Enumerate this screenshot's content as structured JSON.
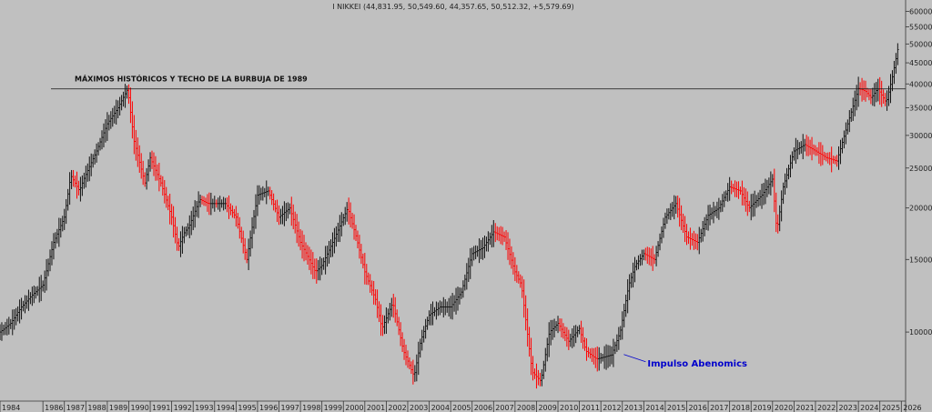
{
  "chart_data": {
    "type": "line",
    "title": "I NIKKEI (44,831.95, 50,549.60, 44,357.65, 50,512.32, +5,579.69)",
    "scale": "log",
    "ylim": [
      6800,
      62000
    ],
    "xlim": [
      1984.0,
      2026.2
    ],
    "x_ticks": [
      1984,
      1986,
      1987,
      1988,
      1989,
      1990,
      1991,
      1992,
      1993,
      1994,
      1995,
      1996,
      1997,
      1998,
      1999,
      2000,
      2001,
      2002,
      2003,
      2004,
      2005,
      2006,
      2007,
      2008,
      2009,
      2010,
      2011,
      2012,
      2013,
      2014,
      2015,
      2016,
      2017,
      2018,
      2019,
      2020,
      2021,
      2022,
      2023,
      2024,
      2025,
      2026
    ],
    "y_ticks": [
      {
        "value": 60000,
        "label": "60000"
      },
      {
        "value": 55000,
        "label": "55000"
      },
      {
        "value": 50000,
        "label": "50000"
      },
      {
        "value": 45000,
        "label": "45000"
      },
      {
        "value": 40000,
        "label": "40000"
      },
      {
        "value": 35000,
        "label": "35000"
      },
      {
        "value": 30000,
        "label": "30000"
      },
      {
        "value": 25000,
        "label": "25000"
      },
      {
        "value": 20000,
        "label": "20000"
      },
      {
        "value": 15000,
        "label": "15000"
      },
      {
        "value": 10000,
        "label": "10000"
      }
    ],
    "series": [
      {
        "up_color": "#111111",
        "down_color": "#ff0000",
        "x": [
          1984.0,
          1984.5,
          1985.0,
          1985.5,
          1986.0,
          1986.5,
          1987.0,
          1987.3,
          1987.7,
          1987.9,
          1988.5,
          1989.0,
          1989.5,
          1989.95,
          1990.25,
          1990.75,
          1991.0,
          1991.5,
          1992.0,
          1992.3,
          1992.6,
          1992.8,
          1993.3,
          1993.7,
          1994.5,
          1995.0,
          1995.5,
          1996.0,
          1996.5,
          1997.0,
          1997.5,
          1998.0,
          1998.7,
          1999.0,
          1999.5,
          2000.2,
          2000.6,
          2001.0,
          2001.5,
          2001.8,
          2002.3,
          2002.8,
          2003.3,
          2003.6,
          2004.0,
          2004.5,
          2005.0,
          2005.5,
          2006.0,
          2006.5,
          2007.0,
          2007.5,
          2008.0,
          2008.3,
          2008.8,
          2009.2,
          2009.6,
          2010.0,
          2010.5,
          2011.0,
          2011.3,
          2011.8,
          2012.5,
          2012.9,
          2013.3,
          2013.6,
          2014.0,
          2014.5,
          2015.0,
          2015.5,
          2016.0,
          2016.5,
          2017.0,
          2017.5,
          2018.0,
          2018.5,
          2018.9,
          2019.5,
          2020.0,
          2020.2,
          2020.5,
          2021.0,
          2021.5,
          2022.0,
          2022.5,
          2023.0,
          2023.5,
          2024.0,
          2024.3,
          2024.6,
          2024.9,
          2025.3,
          2025.6,
          2025.9
        ],
        "y": [
          10000,
          10500,
          11500,
          12300,
          13000,
          16500,
          19000,
          24000,
          22000,
          23500,
          27500,
          32000,
          35000,
          38900,
          29000,
          23000,
          26500,
          23000,
          19000,
          16000,
          17500,
          18000,
          21000,
          20500,
          20500,
          19000,
          15000,
          21500,
          22000,
          19000,
          20000,
          16500,
          14000,
          14500,
          16500,
          20000,
          17000,
          14000,
          12000,
          10200,
          11800,
          9000,
          7800,
          9500,
          11000,
          11500,
          11500,
          12500,
          15500,
          16000,
          17500,
          17000,
          14000,
          13000,
          8000,
          7600,
          10000,
          10500,
          9500,
          10200,
          9000,
          8600,
          8800,
          10000,
          13000,
          14500,
          15500,
          15000,
          19000,
          20500,
          17000,
          16500,
          19200,
          20000,
          22500,
          22000,
          20000,
          21500,
          23500,
          17500,
          22500,
          27500,
          28500,
          27500,
          26500,
          26000,
          32000,
          39000,
          38500,
          37000,
          39000,
          36000,
          42000,
          50512
        ]
      }
    ],
    "reference_line": {
      "value": 38900,
      "label": "MÁXIMOS HISTÓRICOS Y TECHO DE LA BURBUJA DE 1989"
    },
    "annotation": {
      "label": "Impulso Abenomics",
      "x": 2012.9,
      "y": 8600,
      "color": "#0000cc"
    },
    "grid": false
  }
}
